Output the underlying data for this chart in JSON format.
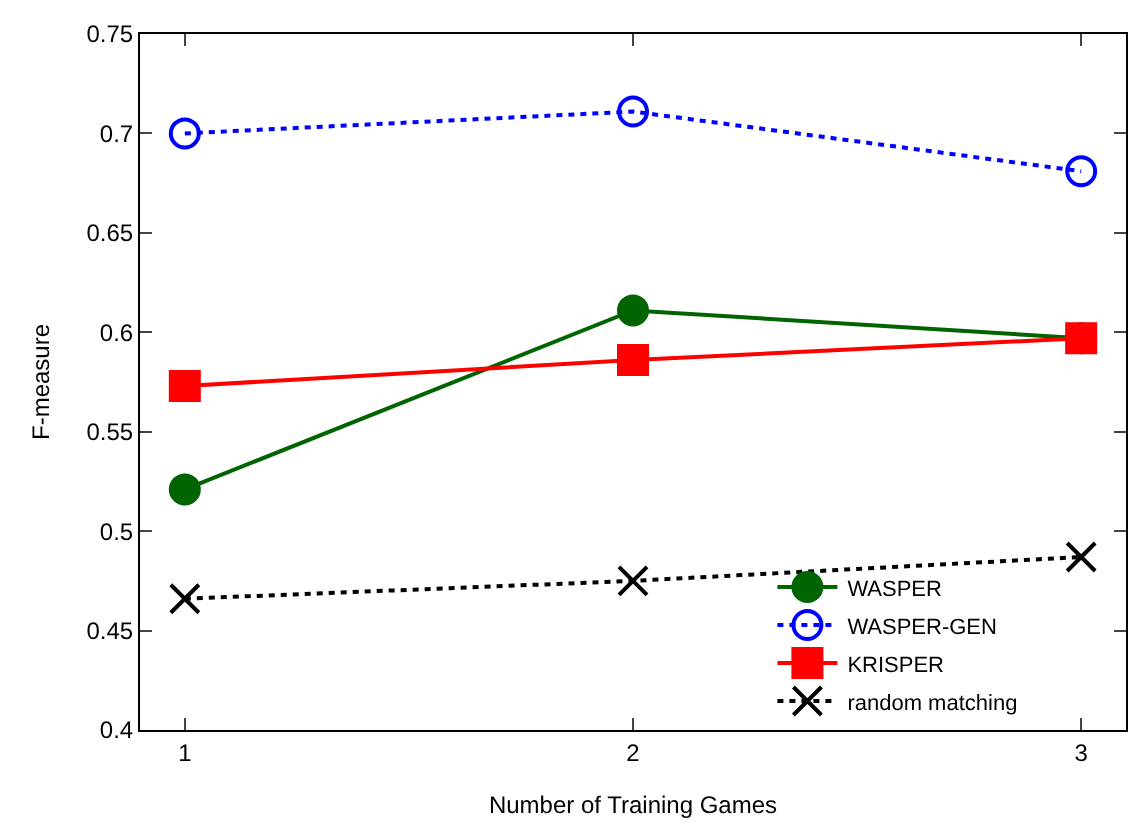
{
  "chart_data": {
    "type": "line",
    "xlabel": "Number of Training Games",
    "ylabel": "F-measure",
    "x": [
      1,
      2,
      3
    ],
    "xlim": [
      0.9,
      3.1
    ],
    "xticks": [
      1,
      2,
      3
    ],
    "ylim": [
      0.4,
      0.75
    ],
    "yticks": [
      0.4,
      0.45,
      0.5,
      0.55,
      0.6,
      0.65,
      0.7,
      0.75
    ],
    "legend": "bottom right",
    "series": [
      {
        "name": "WASPER",
        "color": "#006400",
        "values": [
          0.521,
          0.611,
          0.597
        ],
        "marker": "circle",
        "line_style": "solid"
      },
      {
        "name": "WASPER-GEN",
        "color": "#0000ff",
        "values": [
          0.7,
          0.711,
          0.681
        ],
        "marker": "circle-open",
        "line_style": "dotted"
      },
      {
        "name": "KRISPER",
        "color": "#ff0000",
        "values": [
          0.573,
          0.586,
          0.597
        ],
        "marker": "square",
        "line_style": "solid"
      },
      {
        "name": "random matching",
        "color": "#000000",
        "values": [
          0.466,
          0.475,
          0.487
        ],
        "marker": "cross",
        "line_style": "dotted"
      }
    ]
  }
}
